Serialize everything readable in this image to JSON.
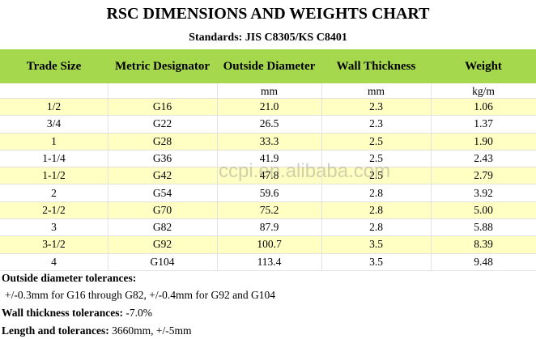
{
  "header": {
    "title": "RSC DIMENSIONS AND WEIGHTS CHART",
    "standards": "Standards: JIS C8305/KS C8401"
  },
  "table": {
    "columns": [
      "Trade Size",
      "Metric Designator",
      "Outside Diameter",
      "Wall Thickness",
      "Weight"
    ],
    "units": [
      "mm",
      "mm",
      "kg/m"
    ],
    "rows": [
      [
        "1/2",
        "G16",
        "21.0",
        "2.3",
        "1.06"
      ],
      [
        "3/4",
        "G22",
        "26.5",
        "2.3",
        "1.37"
      ],
      [
        "1",
        "G28",
        "33.3",
        "2.5",
        "1.90"
      ],
      [
        "1-1/4",
        "G36",
        "41.9",
        "2.5",
        "2.43"
      ],
      [
        "1-1/2",
        "G42",
        "47.8",
        "2.5",
        "2.79"
      ],
      [
        "2",
        "G54",
        "59.6",
        "2.8",
        "3.92"
      ],
      [
        "2-1/2",
        "G70",
        "75.2",
        "2.8",
        "5.00"
      ],
      [
        "3",
        "G82",
        "87.9",
        "2.8",
        "5.88"
      ],
      [
        "3-1/2",
        "G92",
        "100.7",
        "3.5",
        "8.39"
      ],
      [
        "4",
        "G104",
        "113.4",
        "3.5",
        "9.48"
      ]
    ]
  },
  "notes": {
    "od_title": "Outside diameter tolerances:",
    "od_text": "+/-0.3mm for G16 through G82,  +/-0.4mm for G92 and G104",
    "wall_label": "Wall thickness tolerances:",
    "wall_text": "-7.0%",
    "length_label": "Length and tolerances:",
    "length_text": "3660mm, +/-5mm"
  },
  "watermark": "ccpi.en.alibaba.com"
}
